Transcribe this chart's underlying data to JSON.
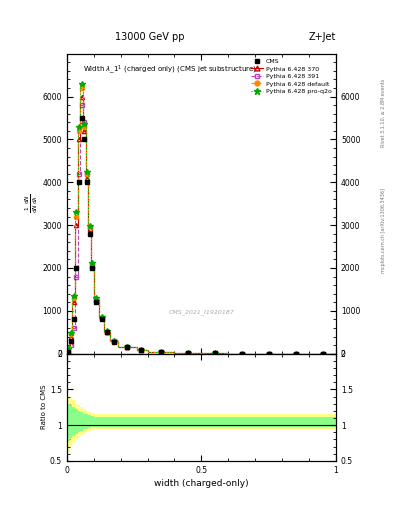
{
  "title_top": "13000 GeV pp",
  "title_right": "Z+Jet",
  "plot_title": "Width $\\lambda$_1$^1$ (charged only) (CMS jet substructure)",
  "xlabel": "width (charged-only)",
  "ylabel_ratio": "Ratio to CMS",
  "watermark": "CMS_2021_I1920187",
  "rivet_text": "Rivet 3.1.10, ≥ 2.8M events",
  "arxiv_text": "[arXiv:1306.3436]",
  "mcplots_text": "mcplots.cern.ch",
  "x_data": [
    0.005,
    0.015,
    0.025,
    0.035,
    0.045,
    0.055,
    0.065,
    0.075,
    0.085,
    0.095,
    0.11,
    0.13,
    0.15,
    0.175,
    0.225,
    0.275,
    0.35,
    0.45,
    0.55,
    0.65,
    0.75,
    0.85,
    0.95
  ],
  "bin_edges": [
    0.0,
    0.01,
    0.02,
    0.03,
    0.04,
    0.05,
    0.06,
    0.07,
    0.08,
    0.09,
    0.1,
    0.12,
    0.14,
    0.16,
    0.19,
    0.26,
    0.3,
    0.4,
    0.5,
    0.6,
    0.7,
    0.8,
    0.9,
    1.0
  ],
  "cms_y": [
    50,
    300,
    800,
    2000,
    4000,
    5500,
    5000,
    4000,
    2800,
    2000,
    1200,
    800,
    500,
    280,
    150,
    80,
    40,
    15,
    5,
    2,
    1,
    0.5,
    0.2
  ],
  "p370_y": [
    80,
    400,
    1200,
    3000,
    5000,
    6000,
    5200,
    4100,
    2900,
    2050,
    1250,
    830,
    510,
    290,
    155,
    85,
    42,
    16,
    5.5,
    2,
    1,
    0.5,
    0.2
  ],
  "p391_y": [
    40,
    200,
    600,
    1800,
    4200,
    5800,
    5400,
    4200,
    2900,
    2050,
    1250,
    830,
    510,
    290,
    155,
    85,
    42,
    16,
    5.5,
    2,
    1,
    0.5,
    0.2
  ],
  "pdef_y": [
    90,
    450,
    1300,
    3200,
    5200,
    6200,
    5300,
    4200,
    2950,
    2100,
    1280,
    840,
    515,
    292,
    157,
    87,
    43,
    17,
    5.8,
    2.1,
    1.1,
    0.6,
    0.2
  ],
  "pq2o_y": [
    100,
    480,
    1350,
    3300,
    5300,
    6300,
    5350,
    4250,
    2970,
    2120,
    1290,
    845,
    518,
    294,
    158,
    88,
    43,
    17,
    5.8,
    2.1,
    1.1,
    0.6,
    0.2
  ],
  "ratio_yellow_lo": [
    0.62,
    0.7,
    0.75,
    0.8,
    0.82,
    0.85,
    0.88,
    0.9,
    0.92,
    0.93,
    0.94,
    0.95,
    0.95,
    0.95,
    0.95,
    0.95,
    0.95,
    0.95,
    0.95,
    0.95,
    0.95,
    0.95,
    0.95
  ],
  "ratio_yellow_hi": [
    1.4,
    1.4,
    1.35,
    1.3,
    1.28,
    1.25,
    1.22,
    1.2,
    1.18,
    1.17,
    1.16,
    1.15,
    1.15,
    1.15,
    1.15,
    1.15,
    1.15,
    1.15,
    1.15,
    1.15,
    1.15,
    1.15,
    1.15
  ],
  "ratio_green_lo": [
    0.78,
    0.82,
    0.85,
    0.88,
    0.9,
    0.92,
    0.94,
    0.95,
    0.96,
    0.97,
    0.97,
    0.98,
    0.98,
    0.98,
    0.98,
    0.98,
    0.98,
    0.98,
    0.98,
    0.98,
    0.98,
    0.98,
    0.98
  ],
  "ratio_green_hi": [
    1.3,
    1.28,
    1.25,
    1.22,
    1.2,
    1.18,
    1.16,
    1.15,
    1.14,
    1.13,
    1.12,
    1.12,
    1.12,
    1.12,
    1.12,
    1.12,
    1.12,
    1.12,
    1.12,
    1.12,
    1.12,
    1.12,
    1.12
  ],
  "ylim_main": [
    0,
    7000
  ],
  "ylim_ratio": [
    0.5,
    2.0
  ],
  "xlim": [
    0.0,
    1.0
  ],
  "color_cms": "#000000",
  "color_p370": "#cc0000",
  "color_p391": "#bb44bb",
  "color_pdef": "#ff8800",
  "color_pq2o": "#00aa00",
  "color_yellow": "#ffff88",
  "color_green": "#88ff88",
  "background": "#ffffff"
}
